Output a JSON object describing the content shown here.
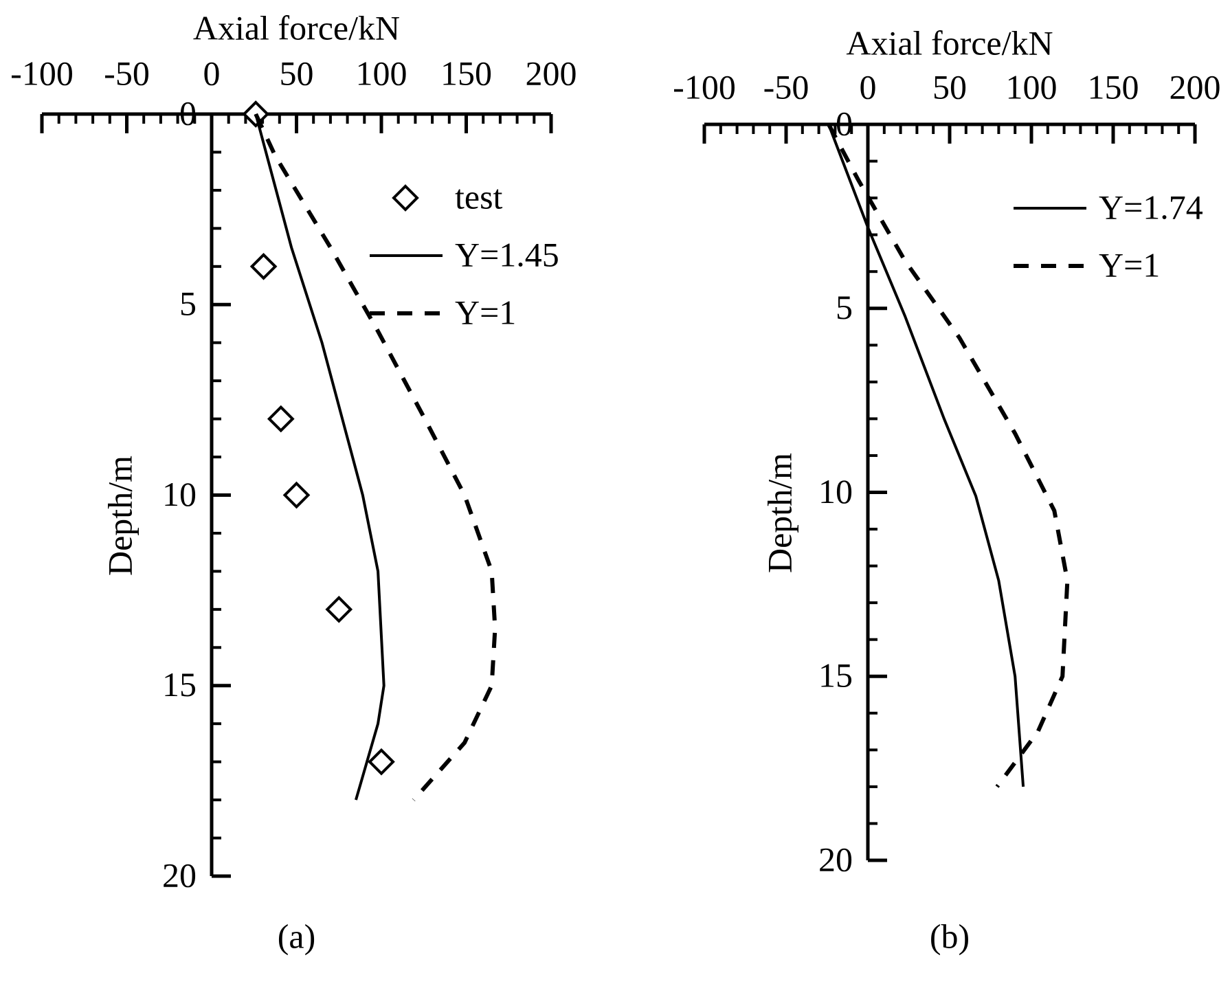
{
  "chart_data": [
    {
      "type": "line",
      "panel_label": "(a)",
      "x_label": "Axial force/kN",
      "y_label": "Depth/m",
      "xlim": [
        -100,
        200
      ],
      "xticks": [
        -100,
        -50,
        0,
        50,
        100,
        150,
        200
      ],
      "x_minor_step": 10,
      "ylim": [
        0,
        20
      ],
      "yticks": [
        0,
        5,
        10,
        15,
        20
      ],
      "y_minor_step": 1,
      "y_inverted": true,
      "x_axis_position": "top",
      "legend": "upper right",
      "series": [
        {
          "name": "test",
          "color": "#000000",
          "marker": "diamond",
          "dash": "none",
          "x": [
            26,
            30.6,
            40.8,
            50,
            75,
            100
          ],
          "values": [
            0,
            4,
            8,
            10,
            13,
            17
          ]
        },
        {
          "name": "Y=1.45",
          "color": "#000000",
          "marker": "none",
          "dash": "solid",
          "x": [
            26,
            47,
            65,
            89,
            98,
            101.5,
            98,
            85
          ],
          "values": [
            0,
            3.5,
            6,
            10,
            12,
            15,
            16,
            18
          ]
        },
        {
          "name": "Y=1",
          "color": "#000000",
          "marker": "none",
          "dash": "dashed",
          "x": [
            26,
            37.5,
            70,
            98,
            125.6,
            149,
            165,
            167,
            165,
            149,
            119
          ],
          "values": [
            0,
            1.1,
            3.5,
            5.7,
            8,
            10,
            12,
            13.5,
            15,
            16.5,
            18
          ]
        }
      ]
    },
    {
      "type": "line",
      "panel_label": "(b)",
      "x_label": "Axial force/kN",
      "y_label": "Depth/m",
      "xlim": [
        -100,
        200
      ],
      "xticks": [
        -100,
        -50,
        0,
        50,
        100,
        150,
        200
      ],
      "x_minor_step": 10,
      "ylim": [
        0,
        20
      ],
      "yticks": [
        0,
        5,
        10,
        15,
        20
      ],
      "y_minor_step": 1,
      "y_inverted": true,
      "x_axis_position": "top",
      "legend": "upper right",
      "series": [
        {
          "name": "Y=1.74",
          "color": "#000000",
          "marker": "none",
          "dash": "solid",
          "x": [
            -24,
            0,
            22.6,
            46.6,
            66,
            80,
            90,
            95
          ],
          "values": [
            0,
            2.8,
            5.2,
            8,
            10.1,
            12.4,
            15,
            18
          ]
        },
        {
          "name": "Y=1",
          "color": "#000000",
          "marker": "none",
          "dash": "dashed",
          "x": [
            -24,
            -6,
            22.6,
            56,
            90,
            114,
            122,
            119,
            104,
            79
          ],
          "values": [
            0,
            1.5,
            3.7,
            5.8,
            8.4,
            10.5,
            12.4,
            15,
            16.5,
            18
          ]
        }
      ]
    }
  ]
}
